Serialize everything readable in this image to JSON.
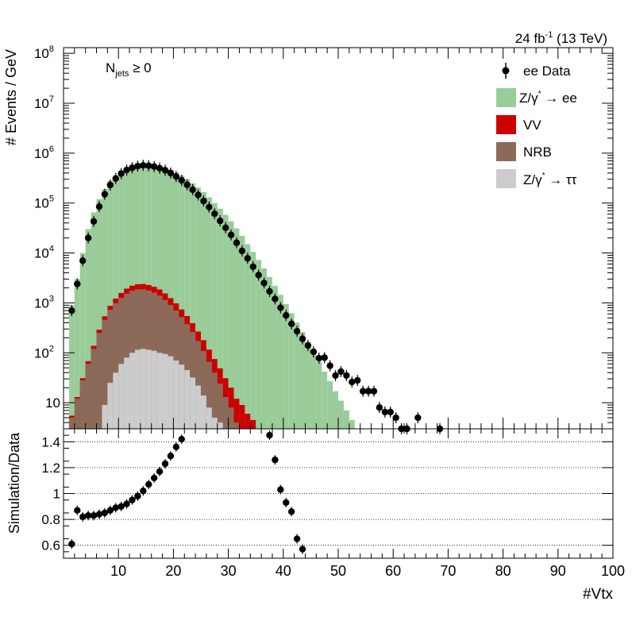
{
  "header": {
    "lumi": "24 fb",
    "lumi_exp": "-1",
    "energy": " (13 TeV)"
  },
  "annotation": {
    "base": "N",
    "sub": "jets",
    "rest": " ≥ 0"
  },
  "legend": {
    "data": "ee Data",
    "zee_a": "Z/γ",
    "zee_b": " → ee",
    "vv": "VV",
    "nrb": "NRB",
    "ztt_a": "Z/γ",
    "ztt_b": " → ττ",
    "star": "*"
  },
  "colors": {
    "zee": "#99cc99",
    "vv": "#cc0000",
    "nrb": "#8b6a5a",
    "ztt": "#cccccc",
    "data": "#000000"
  },
  "chart_data": [
    {
      "type": "bar",
      "stacked": true,
      "ylabel": "# Events / GeV",
      "log_scale": true,
      "xlim": [
        0,
        100
      ],
      "ylim": [
        3,
        130000000
      ],
      "y_ticks": [
        {
          "v": 10,
          "base": "10",
          "exp": ""
        },
        {
          "v": 100,
          "base": "10",
          "exp": "2"
        },
        {
          "v": 1000,
          "base": "10",
          "exp": "3"
        },
        {
          "v": 10000,
          "base": "10",
          "exp": "4"
        },
        {
          "v": 100000,
          "base": "10",
          "exp": "5"
        },
        {
          "v": 1000000,
          "base": "10",
          "exp": "6"
        },
        {
          "v": 10000000,
          "base": "10",
          "exp": "7"
        },
        {
          "v": 100000000,
          "base": "10",
          "exp": "8"
        }
      ],
      "ztt_values": [
        0,
        0,
        0,
        0,
        0,
        0,
        9,
        25,
        40,
        60,
        80,
        100,
        115,
        120,
        115,
        110,
        100,
        95,
        85,
        70,
        58,
        45,
        32,
        22,
        14,
        8,
        5,
        4,
        3,
        2
      ],
      "nrb_values": [
        5,
        12,
        28,
        60,
        120,
        250,
        450,
        700,
        950,
        1200,
        1450,
        1650,
        1750,
        1750,
        1650,
        1500,
        1300,
        1050,
        820,
        630,
        460,
        330,
        230,
        150,
        95,
        58,
        35,
        20,
        10,
        6,
        4,
        3,
        2,
        1.5,
        1,
        0.8
      ],
      "vv_values": [
        0.5,
        1,
        3,
        8,
        18,
        40,
        80,
        150,
        230,
        320,
        400,
        460,
        500,
        520,
        520,
        500,
        460,
        400,
        340,
        280,
        220,
        170,
        130,
        95,
        70,
        50,
        35,
        25,
        18,
        12,
        8,
        6,
        4,
        3,
        2,
        1.5,
        1,
        0.8,
        0.6,
        0.4
      ],
      "zee_values": [
        900,
        3000,
        10000,
        30000,
        65000,
        120000,
        190000,
        280000,
        360000,
        440000,
        510000,
        560000,
        600000,
        610000,
        600000,
        580000,
        550000,
        510000,
        465000,
        410000,
        355000,
        300000,
        250000,
        205000,
        165000,
        130000,
        100000,
        77000,
        58000,
        43000,
        31000,
        22000,
        15000,
        10500,
        7200,
        4900,
        3300,
        2200,
        1450,
        950,
        620,
        400,
        260,
        165,
        105,
        67,
        42,
        27,
        17,
        11,
        7,
        4.5,
        3,
        2
      ],
      "data_points": [
        [
          1,
          700
        ],
        [
          2,
          2400
        ],
        [
          3,
          7000
        ],
        [
          4,
          20000
        ],
        [
          5,
          43000
        ],
        [
          6,
          85000
        ],
        [
          7,
          150000
        ],
        [
          8,
          230000
        ],
        [
          9,
          310000
        ],
        [
          10,
          390000
        ],
        [
          11,
          460000
        ],
        [
          12,
          510000
        ],
        [
          13,
          550000
        ],
        [
          14,
          570000
        ],
        [
          15,
          560000
        ],
        [
          16,
          540000
        ],
        [
          17,
          500000
        ],
        [
          18,
          455000
        ],
        [
          19,
          400000
        ],
        [
          20,
          340000
        ],
        [
          21,
          285000
        ],
        [
          22,
          232000
        ],
        [
          23,
          185000
        ],
        [
          24,
          145000
        ],
        [
          25,
          110000
        ],
        [
          26,
          83000
        ],
        [
          27,
          61000
        ],
        [
          28,
          44000
        ],
        [
          29,
          32000
        ],
        [
          30,
          23000
        ],
        [
          31,
          16000
        ],
        [
          32,
          11000
        ],
        [
          33,
          7800
        ],
        [
          34,
          5300
        ],
        [
          35,
          3600
        ],
        [
          36,
          2500
        ],
        [
          37,
          1700
        ],
        [
          38,
          1200
        ],
        [
          39,
          800
        ],
        [
          40,
          560
        ],
        [
          41,
          380
        ],
        [
          42,
          270
        ],
        [
          43,
          190
        ],
        [
          44,
          140
        ],
        [
          45,
          105
        ],
        [
          46,
          78
        ],
        [
          47,
          80
        ],
        [
          48,
          55
        ],
        [
          49,
          35
        ],
        [
          50,
          42
        ],
        [
          51,
          35
        ],
        [
          52,
          26
        ],
        [
          53,
          28
        ],
        [
          54,
          17
        ],
        [
          55,
          17
        ],
        [
          56,
          17
        ],
        [
          57,
          8
        ],
        [
          58,
          6.5
        ],
        [
          59,
          6.5
        ],
        [
          60,
          5
        ],
        [
          61,
          3
        ],
        [
          62,
          3
        ],
        [
          64,
          5
        ],
        [
          68,
          3
        ]
      ]
    },
    {
      "type": "scatter",
      "xlabel": "#Vtx",
      "ylabel": "Simulation/Data",
      "xlim": [
        0,
        100
      ],
      "ylim": [
        0.5,
        1.5
      ],
      "x_ticks": [
        10,
        20,
        30,
        40,
        50,
        60,
        70,
        80,
        90,
        100
      ],
      "y_ticks": [
        "0.6",
        "0.8",
        "1",
        "1.2",
        "1.4"
      ],
      "grid": "horizontal-dotted",
      "points": [
        [
          1,
          0.61
        ],
        [
          2,
          0.87
        ],
        [
          3,
          0.82
        ],
        [
          4,
          0.83
        ],
        [
          5,
          0.83
        ],
        [
          6,
          0.84
        ],
        [
          7,
          0.85
        ],
        [
          8,
          0.87
        ],
        [
          9,
          0.89
        ],
        [
          10,
          0.9
        ],
        [
          11,
          0.92
        ],
        [
          12,
          0.95
        ],
        [
          13,
          0.98
        ],
        [
          14,
          1.02
        ],
        [
          15,
          1.07
        ],
        [
          16,
          1.12
        ],
        [
          17,
          1.17
        ],
        [
          18,
          1.23
        ],
        [
          19,
          1.29
        ],
        [
          20,
          1.36
        ],
        [
          21,
          1.42
        ],
        [
          37,
          1.45
        ],
        [
          38,
          1.26
        ],
        [
          39,
          1.03
        ],
        [
          40,
          0.93
        ],
        [
          41,
          0.86
        ],
        [
          42,
          0.65
        ],
        [
          43,
          0.57
        ]
      ]
    }
  ]
}
